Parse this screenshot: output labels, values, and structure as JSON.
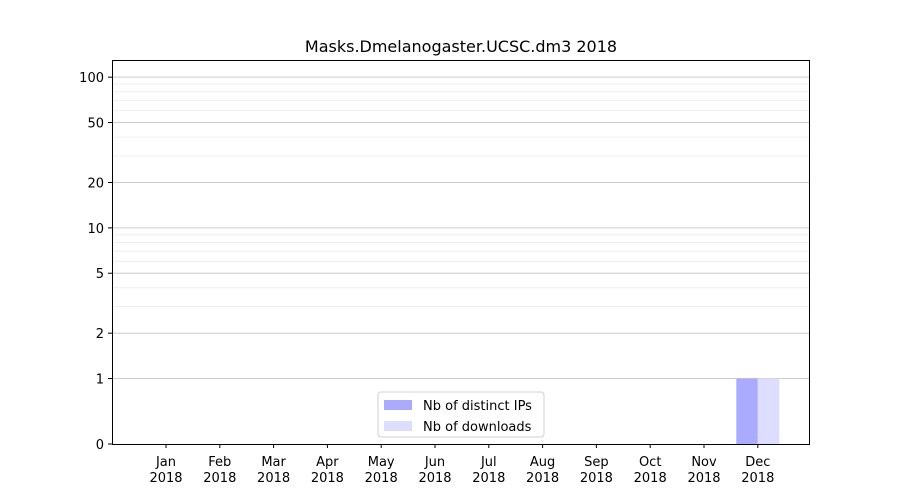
{
  "chart_data": {
    "type": "bar",
    "title": "Masks.Dmelanogaster.UCSC.dm3 2018",
    "xlabel": "",
    "ylabel": "",
    "y_scale": "symlog",
    "ylim": [
      0,
      130
    ],
    "y_ticks": [
      0,
      1,
      2,
      5,
      10,
      20,
      50,
      100
    ],
    "grid": true,
    "legend_position": "lower-center",
    "categories": [
      {
        "month": "Jan",
        "year": "2018"
      },
      {
        "month": "Feb",
        "year": "2018"
      },
      {
        "month": "Mar",
        "year": "2018"
      },
      {
        "month": "Apr",
        "year": "2018"
      },
      {
        "month": "May",
        "year": "2018"
      },
      {
        "month": "Jun",
        "year": "2018"
      },
      {
        "month": "Jul",
        "year": "2018"
      },
      {
        "month": "Aug",
        "year": "2018"
      },
      {
        "month": "Sep",
        "year": "2018"
      },
      {
        "month": "Oct",
        "year": "2018"
      },
      {
        "month": "Nov",
        "year": "2018"
      },
      {
        "month": "Dec",
        "year": "2018"
      }
    ],
    "series": [
      {
        "name": "Nb of distinct IPs",
        "color": "#aaaaff",
        "values": [
          0,
          0,
          0,
          0,
          0,
          0,
          0,
          0,
          0,
          0,
          0,
          1
        ]
      },
      {
        "name": "Nb of downloads",
        "color": "#ddddff",
        "values": [
          0,
          0,
          0,
          0,
          0,
          0,
          0,
          0,
          0,
          0,
          0,
          1
        ]
      }
    ]
  }
}
